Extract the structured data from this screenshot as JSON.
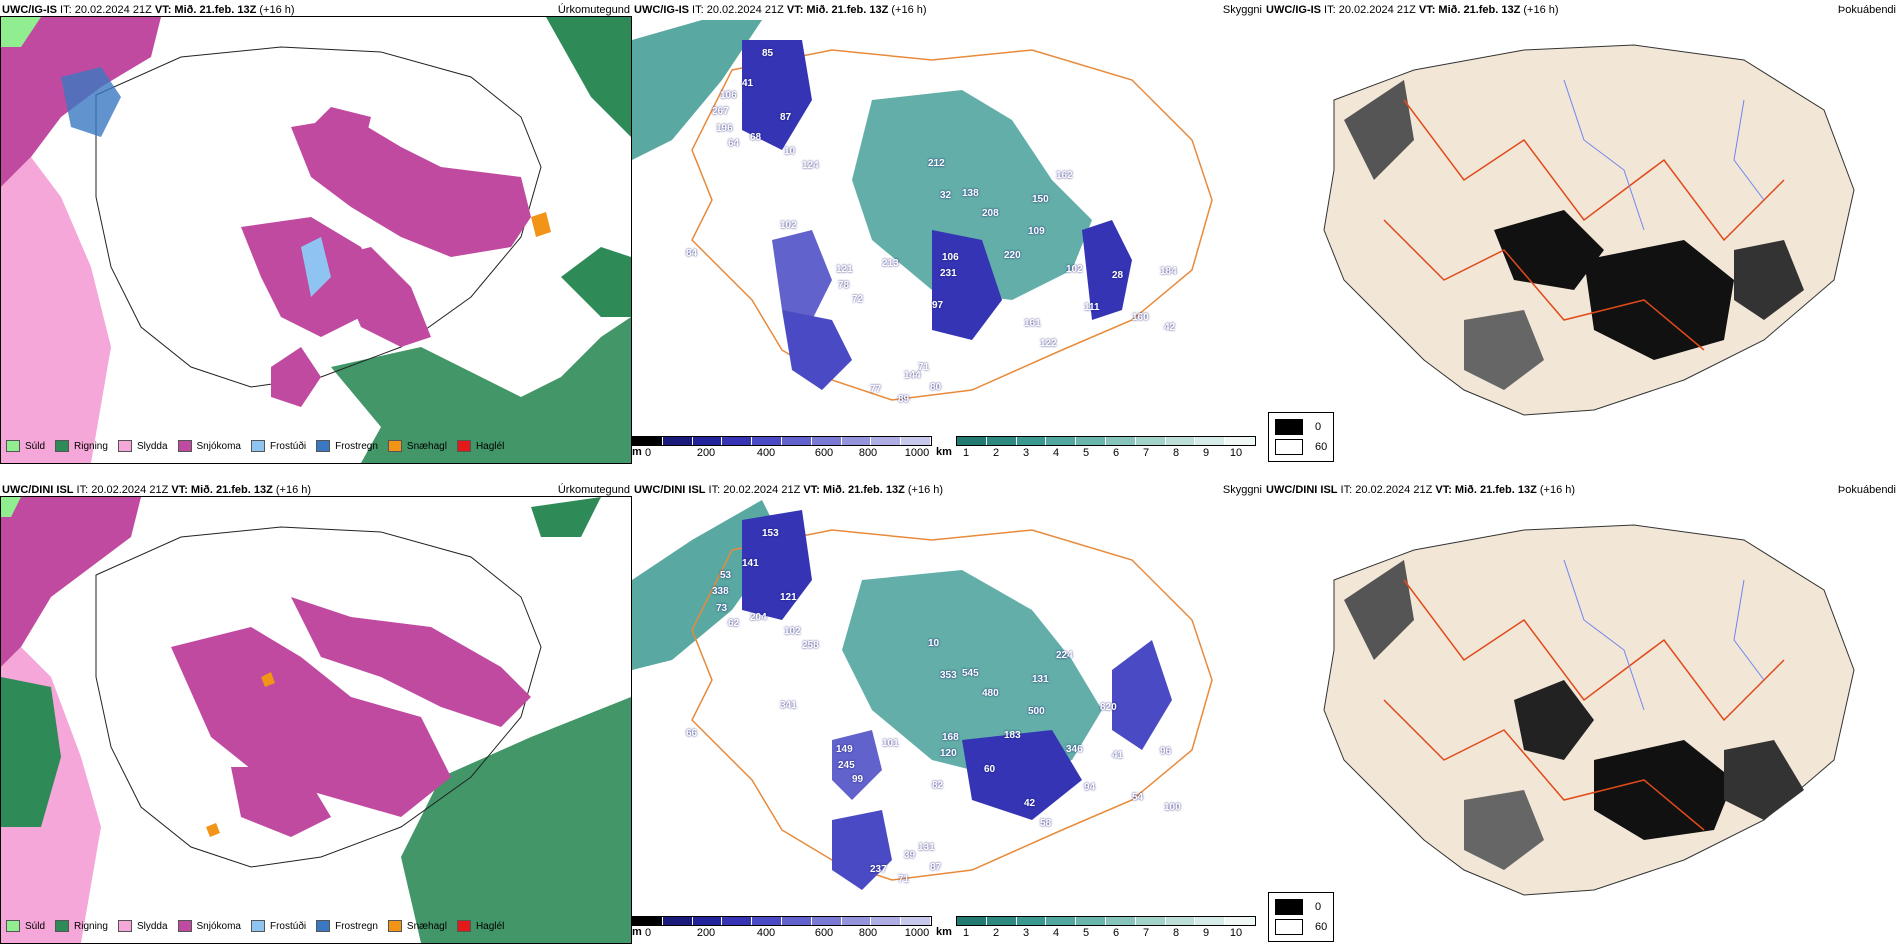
{
  "rows": [
    {
      "id": "top",
      "precip": {
        "header_model": "UWC/IG-IS",
        "header_it": " IT: 20.02.2024 21Z ",
        "header_vt_label": "VT:",
        "header_vt_value": " Mið. 21.feb. 13Z",
        "header_lead": " (+16 h)",
        "title": "Úrkomutegund"
      },
      "cloud": {
        "header_model": "UWC/IG-IS",
        "header_it": " IT: 20.02.2024 21Z ",
        "header_vt_label": "VT:",
        "header_vt_value": " Mið. 21.feb. 13Z",
        "header_lead": " (+16 h)",
        "title": "Skyggni",
        "labels": [
          "85",
          "41",
          "106",
          "267",
          "196",
          "64",
          "68",
          "87",
          "10",
          "124",
          "212",
          "32",
          "138",
          "208",
          "150",
          "109",
          "220",
          "106",
          "231",
          "213",
          "121",
          "78",
          "72",
          "97",
          "161",
          "122",
          "111",
          "184",
          "160",
          "42",
          "144",
          "71",
          "77",
          "89",
          "80",
          "84",
          "102",
          "162",
          "102",
          "28"
        ]
      },
      "fog": {
        "header_model": "UWC/IG-IS",
        "header_it": " IT: 20.02.2024 21Z ",
        "header_vt_label": "VT:",
        "header_vt_value": " Mið. 21.feb. 13Z",
        "header_lead": " (+16 h)",
        "title": "Þokuábendi"
      }
    },
    {
      "id": "bottom",
      "precip": {
        "header_model": "UWC/DINI ISL",
        "header_it": " IT: 20.02.2024 21Z ",
        "header_vt_label": "VT:",
        "header_vt_value": " Mið. 21.feb. 13Z",
        "header_lead": " (+16 h)",
        "title": "Úrkomutegund"
      },
      "cloud": {
        "header_model": "UWC/DINI ISL",
        "header_it": " IT: 20.02.2024 21Z ",
        "header_vt_label": "VT:",
        "header_vt_value": " Mið. 21.feb. 13Z",
        "header_lead": " (+16 h)",
        "title": "Skyggni",
        "labels": [
          "153",
          "141",
          "53",
          "338",
          "73",
          "62",
          "204",
          "121",
          "102",
          "258",
          "10",
          "353",
          "545",
          "480",
          "131",
          "500",
          "183",
          "168",
          "120",
          "101",
          "149",
          "245",
          "99",
          "82",
          "42",
          "58",
          "94",
          "96",
          "54",
          "100",
          "39",
          "131",
          "237",
          "71",
          "87",
          "66",
          "341",
          "224",
          "346",
          "41",
          "820",
          "60"
        ]
      },
      "fog": {
        "header_model": "UWC/DINI ISL",
        "header_it": " IT: 20.02.2024 21Z ",
        "header_vt_label": "VT:",
        "header_vt_value": " Mið. 21.feb. 13Z",
        "header_lead": " (+16 h)",
        "title": "Þokuábendi"
      }
    }
  ],
  "precip_legend": [
    {
      "label": "Súld",
      "color": "#90ee90"
    },
    {
      "label": "Rigning",
      "color": "#2e8b57"
    },
    {
      "label": "Slydda",
      "color": "#f4a7d8"
    },
    {
      "label": "Snjókoma",
      "color": "#c04aa0"
    },
    {
      "label": "Frostúði",
      "color": "#8fc4f2"
    },
    {
      "label": "Frostregn",
      "color": "#3a78c2"
    },
    {
      "label": "Snæhagl",
      "color": "#f29418"
    },
    {
      "label": "Haglél",
      "color": "#e21a1a"
    }
  ],
  "cloud_base_bar": {
    "unit": "m",
    "ticks": [
      "0",
      "200",
      "400",
      "600",
      "800",
      "1000"
    ],
    "colors": [
      "#000000",
      "#1a1a7a",
      "#22229a",
      "#3434b4",
      "#4a4ac4",
      "#6262cc",
      "#7a7ad4",
      "#9494dc",
      "#aeaee4",
      "#c8c8ec"
    ]
  },
  "visibility_bar": {
    "unit": "km",
    "ticks": [
      "1",
      "2",
      "3",
      "4",
      "5",
      "6",
      "7",
      "8",
      "9",
      "10"
    ],
    "colors": [
      "#237a70",
      "#2e8a80",
      "#3a9890",
      "#52a89e",
      "#6ab6ac",
      "#86c4bc",
      "#a2d2ca",
      "#bcdfd8",
      "#d6ece8",
      "#f0f8f6"
    ]
  },
  "fog_legend": [
    {
      "label": "0",
      "color": "#000000"
    },
    {
      "label": "60",
      "color": "#ffffff"
    }
  ],
  "colors": {
    "land_tan": "#f2e6d6",
    "roads": "#e04a1a",
    "rivers": "#6f86f0",
    "cloud_teal": "#3c9a92",
    "cloud_blue": "#3434b4"
  }
}
